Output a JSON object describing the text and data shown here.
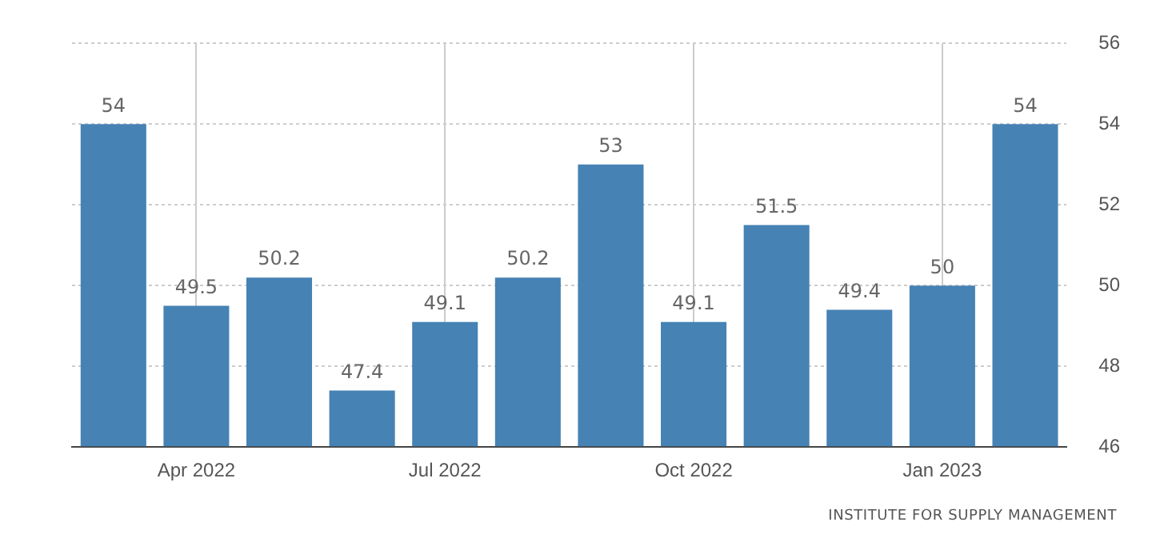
{
  "chart_data": {
    "type": "bar",
    "categories": [
      null,
      "Apr 2022",
      null,
      null,
      "Jul 2022",
      null,
      null,
      "Oct 2022",
      null,
      null,
      "Jan 2023",
      null
    ],
    "values": [
      54,
      49.5,
      50.2,
      47.4,
      49.1,
      50.2,
      53,
      49.1,
      51.5,
      49.4,
      50,
      54
    ],
    "color": "#4682b4",
    "ylim": [
      46,
      56
    ],
    "yticks": [
      46,
      48,
      50,
      52,
      54,
      56
    ],
    "grid": true,
    "data_labels": true,
    "annotations": [
      "INSTITUTE FOR SUPPLY MANAGEMENT"
    ]
  }
}
